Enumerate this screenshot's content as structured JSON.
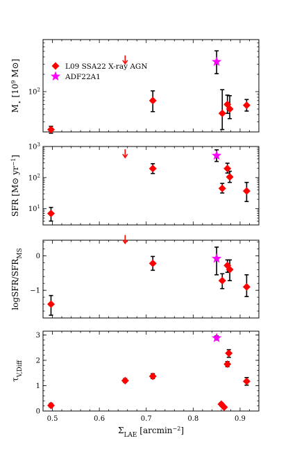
{
  "chart_data": {
    "type": "scatter",
    "colors": {
      "agn": "#ff0000",
      "adf": "#ff00ff",
      "errorbar": "#000000",
      "upper_limit": "#ff0000"
    },
    "xlabel": "ΣLAE [arcmin−2]",
    "xlabel_parts": {
      "main": "Σ",
      "sub": "LAE",
      "rest": " [arcmin",
      "sup": "−2",
      "end": "]"
    },
    "xlim": [
      0.48,
      0.94
    ],
    "xticks": [
      {
        "value": 0.5,
        "label": "0.5"
      },
      {
        "value": 0.6,
        "label": "0.6"
      },
      {
        "value": 0.7,
        "label": "0.7"
      },
      {
        "value": 0.8,
        "label": "0.8"
      },
      {
        "value": 0.9,
        "label": "0.9"
      }
    ],
    "legend": {
      "placement": "top-left",
      "entries": [
        {
          "label": "L09 SSA22 X-ray AGN",
          "marker": "diamond",
          "color": "#ff0000"
        },
        {
          "label": "ADF22A1",
          "marker": "star",
          "color": "#ff00ff"
        }
      ]
    },
    "panels": [
      {
        "id": "mstar",
        "ylabel": "M⋆ [10^9 M⊙]",
        "ylabel_parts": {
          "main": "M",
          "sub": "⋆",
          "rest": " [10",
          "sup": "9",
          "end": " M⊙]"
        },
        "yscale": "log",
        "ylim": [
          20,
          800
        ],
        "yticks": [
          {
            "value": 100,
            "label": "10",
            "sup": "2"
          }
        ],
        "agn": [
          {
            "x": 0.497,
            "y": 22,
            "lo": 19,
            "hi": 25
          },
          {
            "x": 0.714,
            "y": 70,
            "lo": 45,
            "hi": 103
          },
          {
            "x": 0.862,
            "y": 42,
            "lo": 22,
            "hi": 108
          },
          {
            "x": 0.873,
            "y": 60,
            "lo": 42,
            "hi": 87
          },
          {
            "x": 0.878,
            "y": 50,
            "lo": 34,
            "hi": 85
          },
          {
            "x": 0.914,
            "y": 58,
            "lo": 46,
            "hi": 73
          }
        ],
        "adf": [
          {
            "x": 0.85,
            "y": 330,
            "lo": 205,
            "hi": 510
          }
        ],
        "upper_limits": [
          {
            "x": 0.655,
            "y": 360
          }
        ]
      },
      {
        "id": "sfr",
        "ylabel": "SFR [M⊙ yr−1]",
        "ylabel_parts": {
          "main": "SFR [M⊙ yr",
          "sup": "−1",
          "end": "]"
        },
        "yscale": "log",
        "ylim": [
          3,
          1000
        ],
        "yticks": [
          {
            "value": 10,
            "label": "10",
            "sup": "1"
          },
          {
            "value": 100,
            "label": "10",
            "sup": "2"
          },
          {
            "value": 1000,
            "label": "10",
            "sup": "3"
          }
        ],
        "agn": [
          {
            "x": 0.497,
            "y": 7,
            "lo": 4,
            "hi": 11
          },
          {
            "x": 0.714,
            "y": 195,
            "lo": 135,
            "hi": 280
          },
          {
            "x": 0.862,
            "y": 45,
            "lo": 32,
            "hi": 65
          },
          {
            "x": 0.873,
            "y": 195,
            "lo": 140,
            "hi": 290
          },
          {
            "x": 0.878,
            "y": 105,
            "lo": 70,
            "hi": 160
          },
          {
            "x": 0.914,
            "y": 37,
            "lo": 17,
            "hi": 70
          }
        ],
        "adf": [
          {
            "x": 0.85,
            "y": 510,
            "lo": 330,
            "hi": 780
          }
        ],
        "upper_limits": [
          {
            "x": 0.655,
            "y": 600
          }
        ]
      },
      {
        "id": "sfrms",
        "ylabel": "logSFR/SFRMS",
        "ylabel_parts": {
          "main": "logSFR/SFR",
          "sub": "MS",
          "end": ""
        },
        "yscale": "linear",
        "ylim": [
          -1.8,
          0.45
        ],
        "yticks": [
          {
            "value": -1,
            "label": "−1"
          },
          {
            "value": 0,
            "label": "0"
          }
        ],
        "agn": [
          {
            "x": 0.497,
            "y": -1.4,
            "lo": -1.72,
            "hi": -1.15
          },
          {
            "x": 0.714,
            "y": -0.22,
            "lo": -0.42,
            "hi": -0.02
          },
          {
            "x": 0.862,
            "y": -0.72,
            "lo": -0.95,
            "hi": -0.52
          },
          {
            "x": 0.873,
            "y": -0.28,
            "lo": -0.48,
            "hi": -0.12
          },
          {
            "x": 0.878,
            "y": -0.4,
            "lo": -0.72,
            "hi": -0.12
          },
          {
            "x": 0.914,
            "y": -0.9,
            "lo": -1.18,
            "hi": -0.55
          }
        ],
        "adf": [
          {
            "x": 0.85,
            "y": -0.08,
            "lo": -0.55,
            "hi": 0.25
          }
        ],
        "upper_limits": [
          {
            "x": 0.655,
            "y": 0.48
          }
        ]
      },
      {
        "id": "tau",
        "ylabel": "τV,Diff",
        "ylabel_parts": {
          "main": "τ",
          "sub": "V,Diff",
          "end": ""
        },
        "yscale": "linear",
        "ylim": [
          0,
          3.15
        ],
        "yticks": [
          {
            "value": 0,
            "label": "0"
          },
          {
            "value": 1,
            "label": "1"
          },
          {
            "value": 2,
            "label": "2"
          },
          {
            "value": 3,
            "label": "3"
          }
        ],
        "agn": [
          {
            "x": 0.497,
            "y": 0.22,
            "lo": 0.15,
            "hi": 0.3
          },
          {
            "x": 0.655,
            "y": 1.2,
            "lo": 1.13,
            "hi": 1.28
          },
          {
            "x": 0.714,
            "y": 1.37,
            "lo": 1.28,
            "hi": 1.47
          },
          {
            "x": 0.86,
            "y": 0.27,
            "lo": 0.2,
            "hi": 0.33
          },
          {
            "x": 0.866,
            "y": 0.15,
            "lo": 0.1,
            "hi": 0.2
          },
          {
            "x": 0.873,
            "y": 1.85,
            "lo": 1.75,
            "hi": 1.95
          },
          {
            "x": 0.876,
            "y": 2.28,
            "lo": 2.12,
            "hi": 2.42
          },
          {
            "x": 0.914,
            "y": 1.17,
            "lo": 1.02,
            "hi": 1.32
          }
        ],
        "adf": [
          {
            "x": 0.85,
            "y": 2.88,
            "lo": 2.8,
            "hi": 2.96
          }
        ],
        "upper_limits": []
      }
    ]
  }
}
